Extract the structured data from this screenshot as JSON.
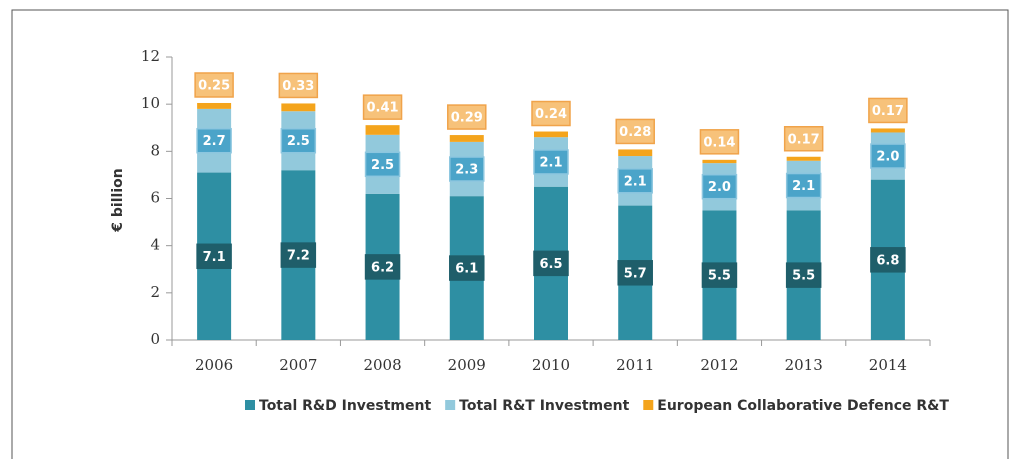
{
  "chart_data": {
    "type": "stacked-bar",
    "y_label": "€ billion",
    "categories": [
      "2006",
      "2007",
      "2008",
      "2009",
      "2010",
      "2011",
      "2012",
      "2013",
      "2014"
    ],
    "series": [
      {
        "name": "Total R&D Investment",
        "color": "#2e8fa3",
        "values": [
          7.1,
          7.2,
          6.2,
          6.1,
          6.5,
          5.7,
          5.5,
          5.5,
          6.8
        ],
        "value_labels": [
          "7.1",
          "7.2",
          "6.2",
          "6.1",
          "6.5",
          "5.7",
          "5.5",
          "5.5",
          "6.8"
        ]
      },
      {
        "name": "Total R&T Investment",
        "color": "#92c9dc",
        "values": [
          2.7,
          2.5,
          2.5,
          2.3,
          2.1,
          2.1,
          2,
          2.1,
          2
        ],
        "value_labels": [
          "2.7",
          "2.5",
          "2.5",
          "2.3",
          "2.1",
          "2.1",
          "2.0",
          "2.1",
          "2.0"
        ]
      },
      {
        "name": "European Collaborative Defence R&T",
        "color": "#f4a41c",
        "values": [
          0.25,
          0.33,
          0.41,
          0.29,
          0.24,
          0.28,
          0.14,
          0.17,
          0.17
        ],
        "value_labels": [
          "0.25",
          "0.33",
          "0.41",
          "0.29",
          "0.24",
          "0.28",
          "0.14",
          "0.17",
          "0.17"
        ]
      }
    ],
    "ylim": [
      0,
      12
    ],
    "yticks": [
      0,
      2,
      4,
      6,
      8,
      10,
      12
    ],
    "legend": "bottom"
  }
}
